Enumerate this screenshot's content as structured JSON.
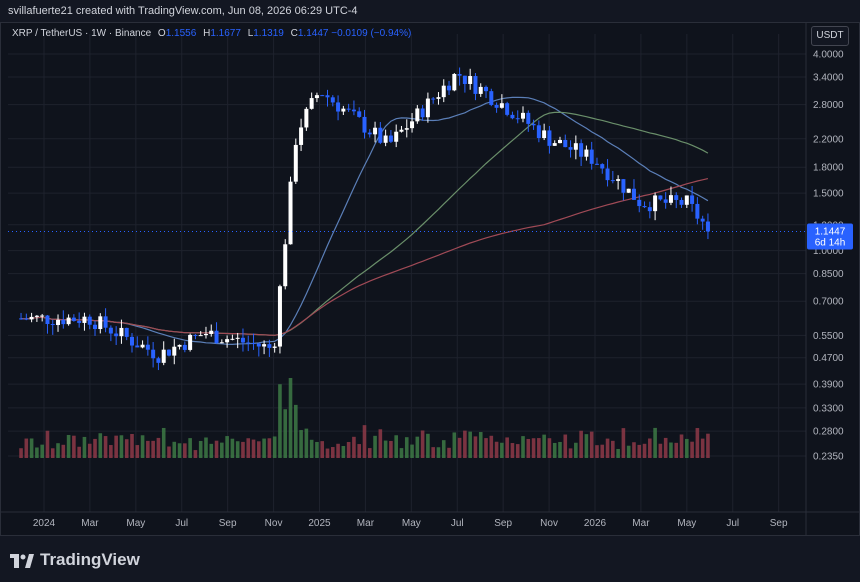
{
  "header": {
    "credit": "svillafuerte21 created with TradingView.com, Jun 08, 2026 06:29 UTC-4"
  },
  "legend": {
    "symbol": "XRP / TetherUS · 1W · Binance",
    "o_label": "O",
    "o": "1.1556",
    "h_label": "H",
    "h": "1.1677",
    "l_label": "L",
    "l": "1.1319",
    "c_label": "C",
    "c": "1.1447",
    "change": "−0.0109 (−0.94%)"
  },
  "currency_button": "USDT",
  "price_tag": {
    "price": "1.1447",
    "countdown": "6d 14h",
    "color": "#2962ff"
  },
  "brand": {
    "name": "TradingView"
  },
  "chart_data": {
    "type": "candlestick",
    "y_scale": "log",
    "y_ticks": [
      "4.0000",
      "3.4000",
      "2.8000",
      "2.2000",
      "1.8000",
      "1.5000",
      "1.2000",
      "1.0000",
      "0.8500",
      "0.7000",
      "0.5500",
      "0.4700",
      "0.3900",
      "0.3300",
      "0.2800",
      "0.2350"
    ],
    "x_ticks": [
      "2024",
      "Mar",
      "May",
      "Jul",
      "Sep",
      "Nov",
      "2025",
      "Mar",
      "May",
      "Jul",
      "Sep",
      "Nov",
      "2026",
      "Mar",
      "May",
      "Jul",
      "Sep"
    ],
    "key_points": [
      {
        "date": "2023-12",
        "close": 0.62
      },
      {
        "date": "2024-03",
        "close": 0.62
      },
      {
        "date": "2024-06",
        "close": 0.48
      },
      {
        "date": "2024-08",
        "close": 0.56
      },
      {
        "date": "2024-11",
        "close": 0.5
      },
      {
        "date": "2024-12",
        "close": 2.3
      },
      {
        "date": "2025-01",
        "close": 3.1
      },
      {
        "date": "2025-04",
        "close": 2.1
      },
      {
        "date": "2025-07",
        "close": 3.5
      },
      {
        "date": "2025-09",
        "close": 2.8
      },
      {
        "date": "2025-11",
        "close": 2.2
      },
      {
        "date": "2026-01",
        "close": 1.9
      },
      {
        "date": "2026-03",
        "close": 1.4
      },
      {
        "date": "2026-05",
        "close": 1.4
      },
      {
        "date": "2026-06",
        "close": 1.1447
      }
    ],
    "moving_averages": [
      {
        "color": "#5b7fb8"
      },
      {
        "color": "#6a8f6a"
      },
      {
        "color": "#a04a56"
      }
    ],
    "up_color": "#ffffff",
    "down_color": "#2962ff",
    "volume_up_color": "#3d7a45",
    "volume_down_color": "#8e3a48"
  }
}
